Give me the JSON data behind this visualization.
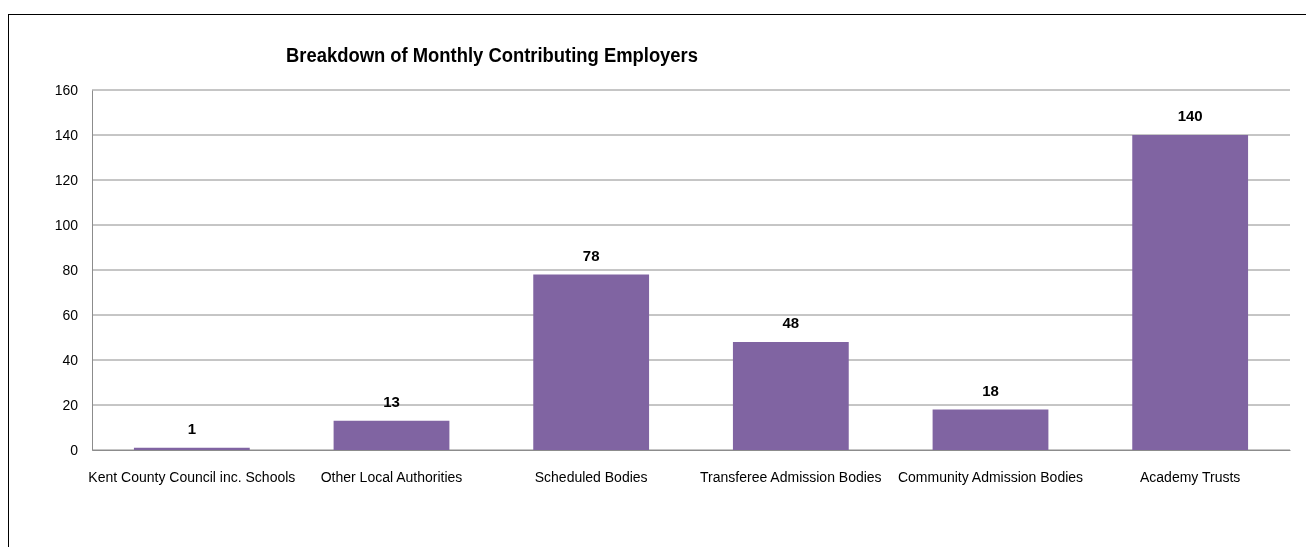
{
  "chart_data": {
    "type": "bar",
    "title": "Breakdown of Monthly Contributing Employers",
    "categories": [
      "Kent County Council inc. Schools",
      "Other Local Authorities",
      "Scheduled Bodies",
      "Transferee Admission Bodies",
      "Community Admission Bodies",
      "Academy Trusts"
    ],
    "values": [
      1,
      13,
      78,
      48,
      18,
      140
    ],
    "color": "#8064a2",
    "ylim": [
      0,
      160
    ],
    "yticks": [
      0,
      20,
      40,
      60,
      80,
      100,
      120,
      140,
      160
    ],
    "grid": "y",
    "data_labels": true
  }
}
